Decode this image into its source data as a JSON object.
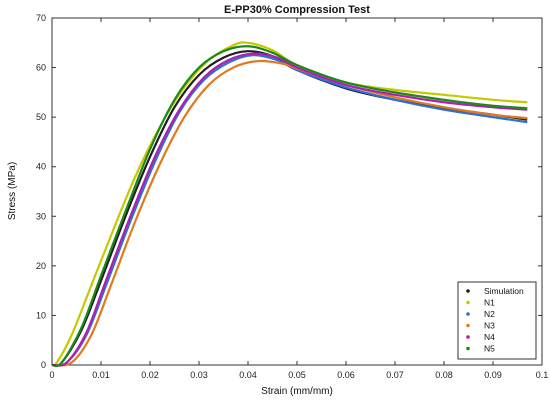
{
  "chart_data": {
    "type": "line",
    "title": "E-PP30% Compression Test",
    "xlabel": "Strain (mm/mm)",
    "ylabel": "Stress (MPa)",
    "xlim": [
      0,
      0.1
    ],
    "ylim": [
      0,
      70
    ],
    "xticks": [
      "0",
      "0.01",
      "0.02",
      "0.03",
      "0.04",
      "0.05",
      "0.06",
      "0.07",
      "0.08",
      "0.09",
      "0.1"
    ],
    "yticks": [
      "0",
      "10",
      "20",
      "30",
      "40",
      "50",
      "60",
      "70"
    ],
    "grid": false,
    "legend_position": "bottom-right",
    "series": [
      {
        "name": "Simulation",
        "color": "#1f1f1f",
        "x": [
          0,
          0.002,
          0.006,
          0.01,
          0.015,
          0.02,
          0.025,
          0.03,
          0.035,
          0.04,
          0.045,
          0.05,
          0.06,
          0.07,
          0.08,
          0.09,
          0.097
        ],
        "y": [
          0,
          0.5,
          7,
          17,
          30,
          42,
          52,
          58.5,
          62,
          63.3,
          62.3,
          59.5,
          55.8,
          53.5,
          51.8,
          50.5,
          49.5
        ]
      },
      {
        "name": "N1",
        "color": "#c8c800",
        "x": [
          0,
          0.001,
          0.004,
          0.008,
          0.012,
          0.017,
          0.022,
          0.027,
          0.032,
          0.037,
          0.04,
          0.045,
          0.05,
          0.06,
          0.07,
          0.08,
          0.09,
          0.097
        ],
        "y": [
          0,
          0.5,
          6,
          16,
          26,
          38,
          48,
          56,
          61.5,
          64.5,
          65,
          63.5,
          60.5,
          57,
          55.5,
          54.5,
          53.5,
          53
        ]
      },
      {
        "name": "N2",
        "color": "#2f6fd0",
        "x": [
          0,
          0.003,
          0.007,
          0.011,
          0.016,
          0.021,
          0.026,
          0.031,
          0.036,
          0.041,
          0.046,
          0.05,
          0.06,
          0.07,
          0.08,
          0.09,
          0.097
        ],
        "y": [
          0,
          0.5,
          6,
          16,
          29,
          41,
          51,
          57.5,
          61,
          62.5,
          61.5,
          59.5,
          56,
          53.5,
          51.5,
          50,
          49
        ]
      },
      {
        "name": "N3",
        "color": "#e07a20",
        "x": [
          0,
          0.004,
          0.008,
          0.012,
          0.017,
          0.022,
          0.027,
          0.032,
          0.037,
          0.042,
          0.047,
          0.05,
          0.06,
          0.07,
          0.08,
          0.09,
          0.097
        ],
        "y": [
          0,
          0.5,
          6,
          16,
          29,
          40.5,
          50,
          56.5,
          60,
          61.3,
          60.8,
          59.8,
          56.5,
          54,
          52,
          50.5,
          49.8
        ]
      },
      {
        "name": "N4",
        "color": "#b020b0",
        "x": [
          0,
          0.003,
          0.007,
          0.011,
          0.016,
          0.021,
          0.026,
          0.031,
          0.036,
          0.041,
          0.046,
          0.05,
          0.06,
          0.07,
          0.08,
          0.09,
          0.097
        ],
        "y": [
          0,
          0.5,
          6.5,
          17,
          30,
          42,
          51.5,
          58,
          61.5,
          62.8,
          62,
          60,
          56.5,
          54.5,
          53,
          52,
          51.5
        ]
      },
      {
        "name": "N5",
        "color": "#1a8a1a",
        "x": [
          0,
          0.002,
          0.006,
          0.01,
          0.015,
          0.02,
          0.025,
          0.03,
          0.035,
          0.04,
          0.045,
          0.05,
          0.06,
          0.07,
          0.08,
          0.09,
          0.097
        ],
        "y": [
          0,
          0.5,
          7.5,
          18,
          31,
          43.5,
          53.5,
          60,
          63.3,
          64.3,
          63,
          60.5,
          57,
          55,
          53.5,
          52.3,
          51.8
        ]
      }
    ]
  }
}
